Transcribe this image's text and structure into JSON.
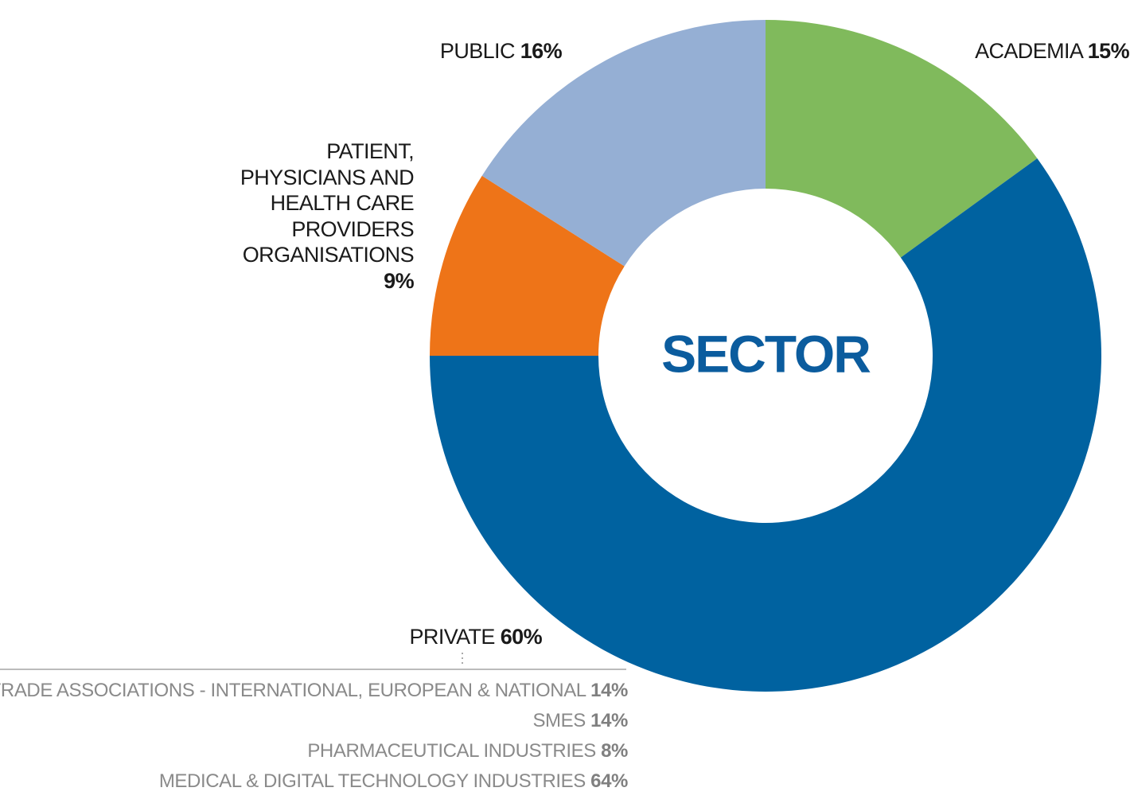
{
  "chart_data": {
    "type": "donut",
    "title": "SECTOR",
    "categories": [
      "ACADEMIA",
      "PRIVATE",
      "PATIENT,\nPHYSICIANS AND\nHEALTH CARE\nPROVIDERS\nORGANISATIONS",
      "PUBLIC"
    ],
    "values": [
      15,
      60,
      9,
      16
    ],
    "value_labels": [
      "15%",
      "60%",
      "9%",
      "16%"
    ],
    "colors": [
      "#80ba5c",
      "#0062a0",
      "#ee7418",
      "#95afd4"
    ],
    "breakdown": {
      "categories": [
        "TRADE ASSOCIATIONS - INTERNATIONAL, EUROPEAN & NATIONAL",
        "SMES",
        "PHARMACEUTICAL INDUSTRIES",
        "MEDICAL & DIGITAL TECHNOLOGY INDUSTRIES"
      ],
      "value_labels": [
        "14%",
        "14%",
        "8%",
        "64%"
      ]
    }
  }
}
